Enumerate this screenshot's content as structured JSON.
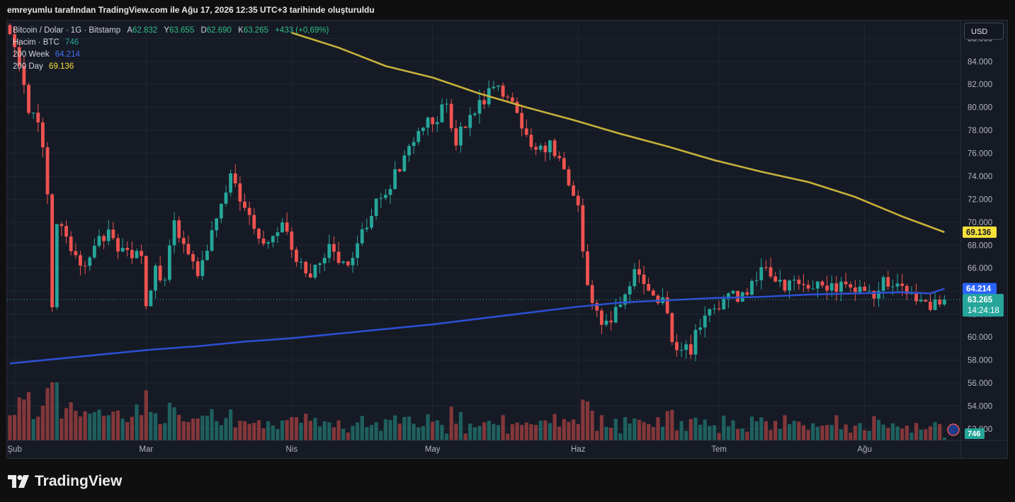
{
  "header": {
    "snapshot_text": "emreyumlu tarafından TradingView.com ile Ağu 17, 2026 12:35 UTC+3 tarihinde oluşturuldu"
  },
  "legend": {
    "symbol": "Bitcoin / Dolar · 1G · Bitstamp",
    "open_key": "A",
    "open_val": "62.832",
    "high_key": "Y",
    "high_val": "63.655",
    "low_key": "D",
    "low_val": "62.690",
    "close_key": "K",
    "close_val": "63.265",
    "change": "+433 (+0,69%)",
    "volume_label": "Hacim · BTC",
    "volume_val": "746",
    "ma_week_label": "200 Week",
    "ma_week_val": "64.214",
    "ma_day_label": "200 Day",
    "ma_day_val": "69.136"
  },
  "currency_button": "USD",
  "price_badges": {
    "ma_day": "69.136",
    "ma_week": "64.214",
    "last_price": "63.265",
    "countdown": "14:24:18",
    "volume": "746"
  },
  "footer": {
    "brand": "TradingView"
  },
  "colors": {
    "up": "#26a69a",
    "down": "#ef5350",
    "ma_week": "#2c4fd1",
    "ma_day": "#c7b13a",
    "background": "#161a25",
    "grid": "#222631"
  },
  "chart_data": {
    "type": "candlestick",
    "title": "Bitcoin / Dolar · 1G · Bitstamp",
    "y_ticks": [
      "86.000",
      "84.000",
      "82.000",
      "80.000",
      "78.000",
      "76.000",
      "74.000",
      "72.000",
      "70.000",
      "68.000",
      "66.000",
      "64.000",
      "62.000",
      "60.000",
      "58.000",
      "56.000",
      "54.000",
      "52.000"
    ],
    "ylim": [
      51000,
      87500
    ],
    "x_ticks": [
      "Şub",
      "Mar",
      "Nis",
      "May",
      "Haz",
      "Tem",
      "Ağu"
    ],
    "x_tick_days": [
      1,
      29,
      60,
      90,
      121,
      151,
      182
    ],
    "last": {
      "open": 62832,
      "high": 63655,
      "low": 62690,
      "close": 63265,
      "change": "+433 (+0,69%)",
      "volume": 746
    },
    "ma_200_day": {
      "name": "200 Day",
      "last": 69136,
      "points": [
        [
          60,
          86500
        ],
        [
          70,
          85200
        ],
        [
          80,
          83600
        ],
        [
          90,
          82600
        ],
        [
          100,
          81200
        ],
        [
          110,
          80000
        ],
        [
          120,
          78900
        ],
        [
          130,
          77700
        ],
        [
          140,
          76600
        ],
        [
          150,
          75400
        ],
        [
          160,
          74400
        ],
        [
          170,
          73500
        ],
        [
          180,
          72200
        ],
        [
          190,
          70500
        ],
        [
          199,
          69136
        ]
      ]
    },
    "ma_200_week": {
      "name": "200 Week",
      "last": 64214,
      "points": [
        [
          0,
          57700
        ],
        [
          10,
          58100
        ],
        [
          20,
          58500
        ],
        [
          30,
          58900
        ],
        [
          40,
          59200
        ],
        [
          50,
          59600
        ],
        [
          60,
          59900
        ],
        [
          70,
          60300
        ],
        [
          80,
          60700
        ],
        [
          90,
          61100
        ],
        [
          100,
          61600
        ],
        [
          110,
          62100
        ],
        [
          120,
          62600
        ],
        [
          130,
          63000
        ],
        [
          140,
          63200
        ],
        [
          150,
          63400
        ],
        [
          160,
          63500
        ],
        [
          170,
          63700
        ],
        [
          180,
          63800
        ],
        [
          190,
          63900
        ],
        [
          196,
          63800
        ],
        [
          199,
          64214
        ]
      ]
    },
    "anchors": [
      [
        0,
        86000
      ],
      [
        2,
        84000
      ],
      [
        4,
        80000
      ],
      [
        6,
        79000
      ],
      [
        7,
        77000
      ],
      [
        8,
        73000
      ],
      [
        9,
        63000
      ],
      [
        10,
        70000
      ],
      [
        12,
        69000
      ],
      [
        14,
        67000
      ],
      [
        15,
        66000
      ],
      [
        18,
        68000
      ],
      [
        21,
        69000
      ],
      [
        23,
        67000
      ],
      [
        25,
        67500
      ],
      [
        28,
        67000
      ],
      [
        29,
        63000
      ],
      [
        31,
        66000
      ],
      [
        33,
        65000
      ],
      [
        35,
        70000
      ],
      [
        37,
        68000
      ],
      [
        40,
        66000
      ],
      [
        43,
        69000
      ],
      [
        45,
        72000
      ],
      [
        47,
        74000
      ],
      [
        50,
        71000
      ],
      [
        53,
        69000
      ],
      [
        55,
        68000
      ],
      [
        58,
        70000
      ],
      [
        60,
        68000
      ],
      [
        63,
        65000
      ],
      [
        65,
        66000
      ],
      [
        68,
        68000
      ],
      [
        70,
        67000
      ],
      [
        72,
        66000
      ],
      [
        75,
        69000
      ],
      [
        77,
        71000
      ],
      [
        80,
        73000
      ],
      [
        82,
        74000
      ],
      [
        84,
        76000
      ],
      [
        87,
        78000
      ],
      [
        90,
        79000
      ],
      [
        93,
        80000
      ],
      [
        95,
        77000
      ],
      [
        98,
        79000
      ],
      [
        100,
        80000
      ],
      [
        102,
        81000
      ],
      [
        104,
        82000
      ],
      [
        106,
        81000
      ],
      [
        108,
        79500
      ],
      [
        110,
        77000
      ],
      [
        112,
        76000
      ],
      [
        115,
        77000
      ],
      [
        117,
        75000
      ],
      [
        119,
        73500
      ],
      [
        121,
        72000
      ],
      [
        123,
        64000
      ],
      [
        125,
        62000
      ],
      [
        127,
        61000
      ],
      [
        129,
        62000
      ],
      [
        131,
        64000
      ],
      [
        133,
        66000
      ],
      [
        135,
        64000
      ],
      [
        137,
        63000
      ],
      [
        139,
        64000
      ],
      [
        141,
        60000
      ],
      [
        143,
        58500
      ],
      [
        145,
        59000
      ],
      [
        147,
        61000
      ],
      [
        149,
        62000
      ],
      [
        151,
        63000
      ],
      [
        153,
        64000
      ],
      [
        155,
        63500
      ],
      [
        157,
        64000
      ],
      [
        159,
        65000
      ],
      [
        161,
        66000
      ],
      [
        163,
        65000
      ],
      [
        165,
        64500
      ],
      [
        167,
        65000
      ],
      [
        170,
        64000
      ],
      [
        172,
        64200
      ],
      [
        175,
        64000
      ],
      [
        178,
        65000
      ],
      [
        180,
        64000
      ],
      [
        182,
        63500
      ],
      [
        185,
        64300
      ],
      [
        188,
        65000
      ],
      [
        190,
        64300
      ],
      [
        192,
        63800
      ],
      [
        194,
        63500
      ],
      [
        196,
        63000
      ],
      [
        198,
        62832
      ]
    ],
    "volume_ylim": [
      0,
      150000
    ]
  }
}
